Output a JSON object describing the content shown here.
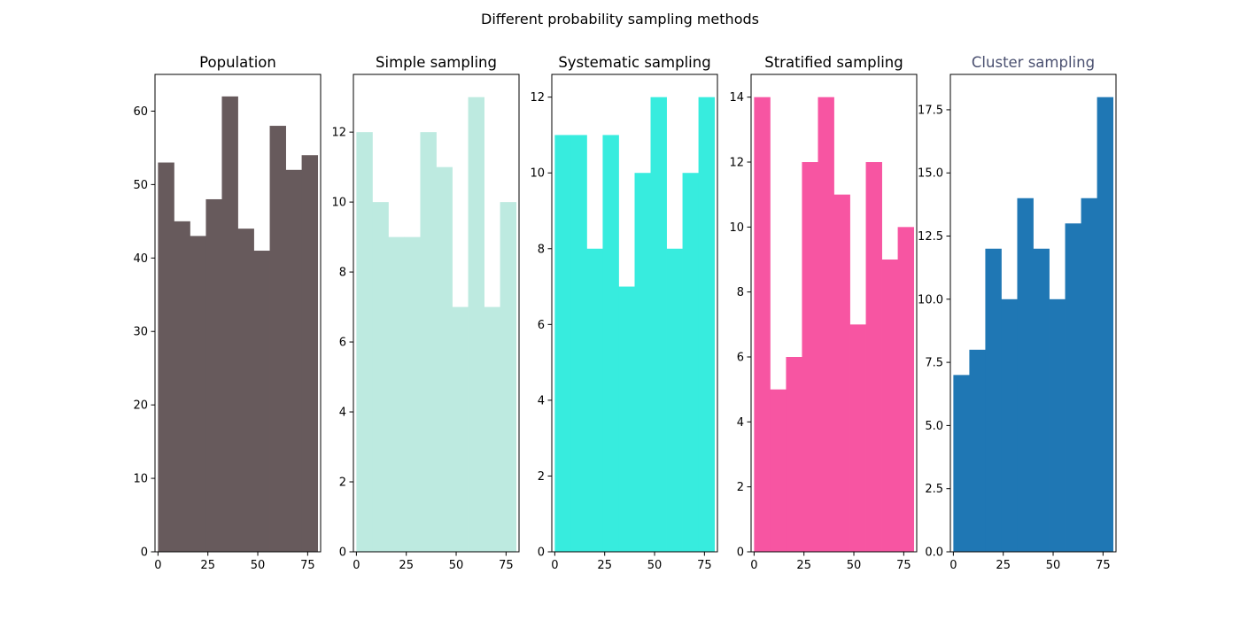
{
  "figure": {
    "title": "Different probability sampling methods"
  },
  "chart_data": [
    {
      "type": "bar",
      "title": "Population",
      "title_color": "#000000",
      "color": "#675a5c",
      "bin_edges": [
        0,
        8,
        16,
        24,
        32,
        40,
        48,
        56,
        64,
        72,
        80
      ],
      "values": [
        53,
        45,
        43,
        48,
        62,
        44,
        41,
        58,
        52,
        54
      ],
      "xlim": [
        -1.5,
        81.5
      ],
      "ylim": [
        0,
        65
      ],
      "xticks": [
        0,
        25,
        50,
        75
      ],
      "yticks": [
        0,
        10,
        20,
        30,
        40,
        50,
        60
      ],
      "ytick_labels": [
        "0",
        "10",
        "20",
        "30",
        "40",
        "50",
        "60"
      ],
      "xlabel": "",
      "ylabel": ""
    },
    {
      "type": "bar",
      "title": "Simple sampling",
      "title_color": "#000000",
      "color": "#bdeae0",
      "bin_edges": [
        0,
        8,
        16,
        24,
        32,
        40,
        48,
        56,
        64,
        72,
        80
      ],
      "values": [
        12,
        10,
        9,
        9,
        12,
        11,
        7,
        13,
        7,
        10
      ],
      "xlim": [
        -1.5,
        81.5
      ],
      "ylim": [
        0,
        13.65
      ],
      "xticks": [
        0,
        25,
        50,
        75
      ],
      "yticks": [
        0,
        2,
        4,
        6,
        8,
        10,
        12
      ],
      "ytick_labels": [
        "0",
        "2",
        "4",
        "6",
        "8",
        "10",
        "12"
      ],
      "xlabel": "",
      "ylabel": ""
    },
    {
      "type": "bar",
      "title": "Systematic sampling",
      "title_color": "#000000",
      "color": "#37ecde",
      "bin_edges": [
        0,
        8,
        16,
        24,
        32,
        40,
        48,
        56,
        64,
        72,
        80
      ],
      "values": [
        11,
        11,
        8,
        11,
        7,
        10,
        12,
        8,
        10,
        12
      ],
      "xlim": [
        -1.5,
        81.5
      ],
      "ylim": [
        0,
        12.6
      ],
      "xticks": [
        0,
        25,
        50,
        75
      ],
      "yticks": [
        0,
        2,
        4,
        6,
        8,
        10,
        12
      ],
      "ytick_labels": [
        "0",
        "2",
        "4",
        "6",
        "8",
        "10",
        "12"
      ],
      "xlabel": "",
      "ylabel": ""
    },
    {
      "type": "bar",
      "title": "Stratified sampling",
      "title_color": "#000000",
      "color": "#f755a2",
      "bin_edges": [
        0,
        8,
        16,
        24,
        32,
        40,
        48,
        56,
        64,
        72,
        80
      ],
      "values": [
        14,
        5,
        6,
        12,
        14,
        11,
        7,
        12,
        9,
        10
      ],
      "xlim": [
        -1.5,
        81.5
      ],
      "ylim": [
        0,
        14.7
      ],
      "xticks": [
        0,
        25,
        50,
        75
      ],
      "yticks": [
        0,
        2,
        4,
        6,
        8,
        10,
        12,
        14
      ],
      "ytick_labels": [
        "0",
        "2",
        "4",
        "6",
        "8",
        "10",
        "12",
        "14"
      ],
      "xlabel": "",
      "ylabel": ""
    },
    {
      "type": "bar",
      "title": "Cluster sampling",
      "title_color": "#4a5070",
      "color": "#1f77b4",
      "bin_edges": [
        0,
        8,
        16,
        24,
        32,
        40,
        48,
        56,
        64,
        72,
        80
      ],
      "values": [
        7,
        8,
        12,
        10,
        14,
        12,
        10,
        13,
        14,
        18
      ],
      "xlim": [
        -1.5,
        81.5
      ],
      "ylim": [
        0,
        18.9
      ],
      "xticks": [
        0,
        25,
        50,
        75
      ],
      "yticks": [
        0,
        2.5,
        5,
        7.5,
        10,
        12.5,
        15,
        17.5
      ],
      "ytick_labels": [
        "0.0",
        "2.5",
        "5.0",
        "7.5",
        "10.0",
        "12.5",
        "15.0",
        "17.5"
      ],
      "xlabel": "",
      "ylabel": ""
    }
  ]
}
